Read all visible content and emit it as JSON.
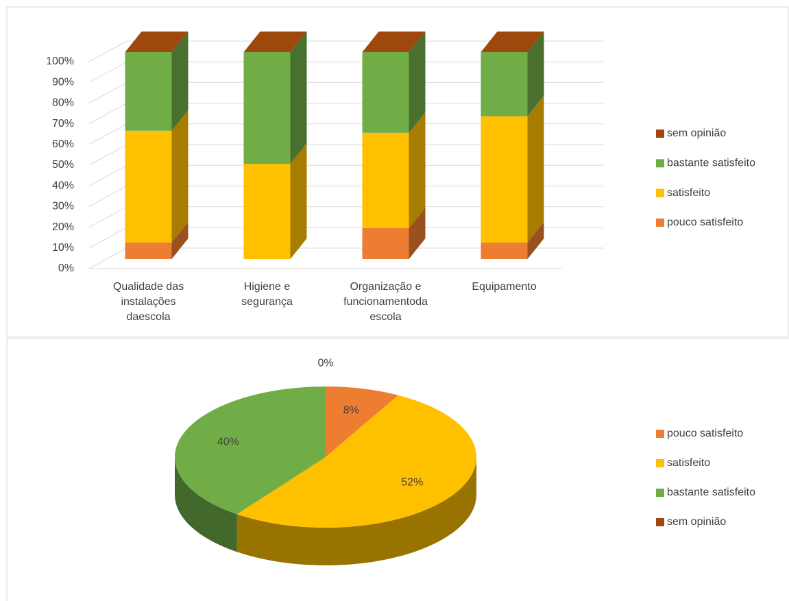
{
  "chart_data": [
    {
      "type": "bar3d",
      "categories": [
        "Qualidade das instalações daescola",
        "Higiene e segurança",
        "Organização e funcionamentoda escola",
        "Equipamento"
      ],
      "series": [
        {
          "name": "pouco satisfeito",
          "color": "#ed7d31",
          "values": [
            8,
            0,
            15,
            8
          ]
        },
        {
          "name": "satisfeito",
          "color": "#ffc000",
          "values": [
            54,
            46,
            46,
            61
          ]
        },
        {
          "name": "bastante satisfeito",
          "color": "#70ad47",
          "values": [
            38,
            54,
            39,
            31
          ]
        },
        {
          "name": "sem opinião",
          "color": "#9e480e",
          "values": [
            0,
            0,
            0,
            0
          ]
        }
      ],
      "ylim": [
        0,
        100
      ],
      "yticks": [
        {
          "value": 0,
          "label": "0%"
        },
        {
          "value": 10,
          "label": "10%"
        },
        {
          "value": 20,
          "label": "20%"
        },
        {
          "value": 30,
          "label": "30%"
        },
        {
          "value": 40,
          "label": "40%"
        },
        {
          "value": 50,
          "label": "50%"
        },
        {
          "value": 60,
          "label": "60%"
        },
        {
          "value": 70,
          "label": "70%"
        },
        {
          "value": 80,
          "label": "80%"
        },
        {
          "value": 90,
          "label": "90%"
        },
        {
          "value": 100,
          "label": "100%"
        }
      ],
      "grid": true,
      "legend": "right"
    },
    {
      "type": "pie3d",
      "categories": [
        "pouco satisfeito",
        "satisfeito",
        "bastante satisfeito",
        "sem opinião"
      ],
      "values": [
        8,
        52,
        40,
        0
      ],
      "value_labels": [
        "8%",
        "52%",
        "40%",
        "0%"
      ],
      "colors": [
        "#ed7d31",
        "#ffc000",
        "#70ad47",
        "#9e480e"
      ],
      "legend": "right"
    }
  ]
}
